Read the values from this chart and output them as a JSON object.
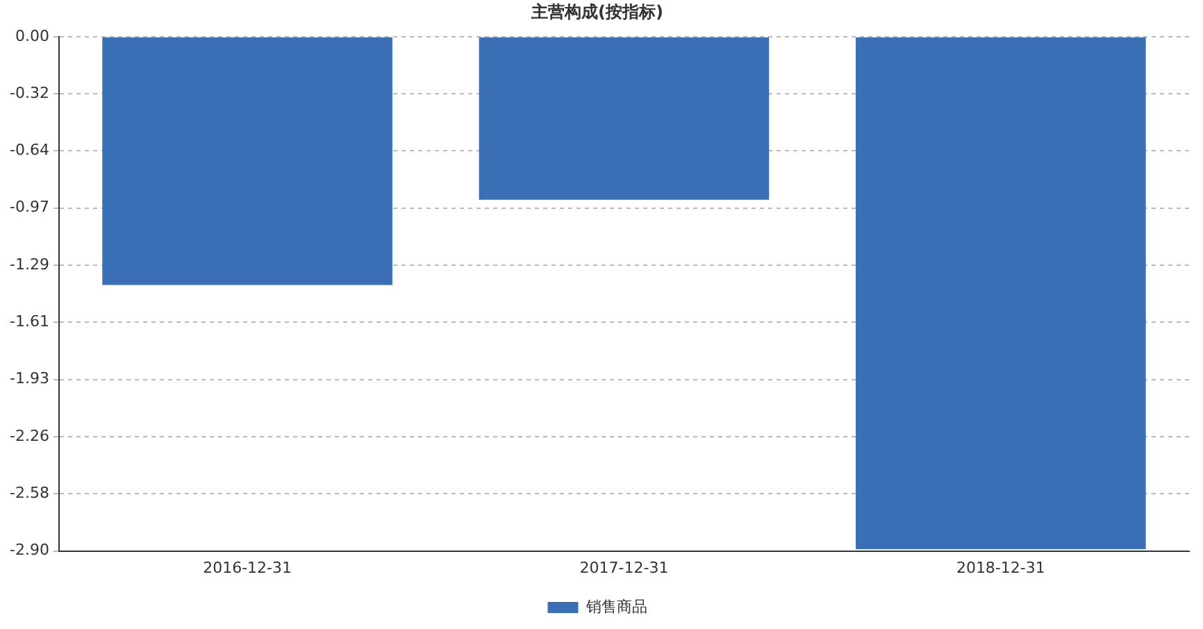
{
  "chart_data": {
    "type": "bar",
    "title": "主营构成(按指标)",
    "categories": [
      "2016-12-31",
      "2017-12-31",
      "2018-12-31"
    ],
    "series": [
      {
        "name": "销售商品",
        "color": "#3a6eb5",
        "values": [
          -1.4,
          -0.92,
          -2.89
        ]
      }
    ],
    "ylim": [
      -2.9,
      0
    ],
    "yticks": [
      {
        "value": 0,
        "label": "0.00"
      },
      {
        "value": -0.3222,
        "label": "-0.32"
      },
      {
        "value": -0.6444,
        "label": "-0.64"
      },
      {
        "value": -0.9667,
        "label": "-0.97"
      },
      {
        "value": -1.2889,
        "label": "-1.29"
      },
      {
        "value": -1.6111,
        "label": "-1.61"
      },
      {
        "value": -1.9333,
        "label": "-1.93"
      },
      {
        "value": -2.2556,
        "label": "-2.26"
      },
      {
        "value": -2.5778,
        "label": "-2.58"
      },
      {
        "value": -2.9,
        "label": "-2.90"
      }
    ],
    "grid": "y",
    "legend": "bottom"
  }
}
